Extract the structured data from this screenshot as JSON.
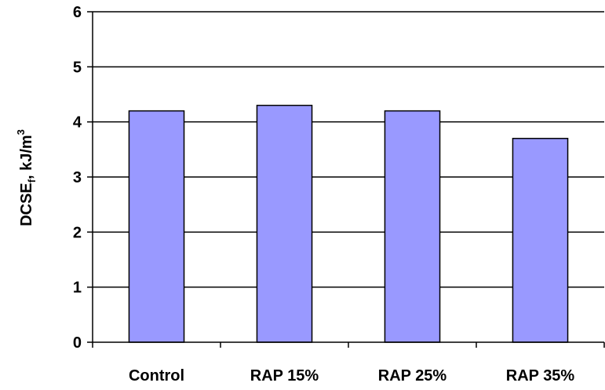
{
  "chart_data": {
    "type": "bar",
    "title": "",
    "xlabel": "",
    "ylabel": {
      "main": "DCSE",
      "subscript": "f",
      "rest": ", kJ/m",
      "superscript": "3"
    },
    "categories": [
      "Control",
      "RAP 15%",
      "RAP 25%",
      "RAP 35%"
    ],
    "values": [
      4.2,
      4.3,
      4.2,
      3.7
    ],
    "ylim": [
      0,
      6
    ],
    "yticks": [
      0,
      1,
      2,
      3,
      4,
      5,
      6
    ],
    "grid": true,
    "legend": "none",
    "colors": {
      "bar_fill": "#9999FF",
      "bar_stroke": "#000000",
      "grid": "#000000",
      "axis": "#000000"
    }
  }
}
